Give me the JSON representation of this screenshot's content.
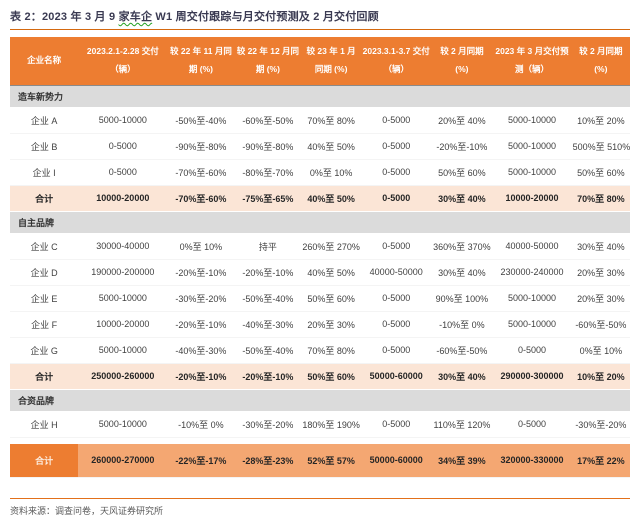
{
  "title": {
    "prefix": "表 2：2023 年 3 月 9 ",
    "underlined": "家车企",
    "suffix": " W1 周交付跟踪与月交付预测及 2 月交付回顾"
  },
  "table": {
    "columns": [
      "企业名称",
      "2023.2.1-2.28 交付（辆）",
      "较 22 年 11 月同期 (%)",
      "较 22 年 12 月同期 (%)",
      "较 23 年 1 月同期 (%)",
      "2023.3.1-3.7 交付（辆）",
      "较 2 月同期 (%)",
      "2023 年 3 月交付预测（辆）",
      "较 2 月同期 (%)"
    ],
    "sections": [
      {
        "name": "造车新势力",
        "rows": [
          {
            "label": "企业 A",
            "values": [
              "5000-10000",
              "-50%至-40%",
              "-60%至-50%",
              "70%至 80%",
              "0-5000",
              "20%至 40%",
              "5000-10000",
              "10%至 20%"
            ]
          },
          {
            "label": "企业 B",
            "values": [
              "0-5000",
              "-90%至-80%",
              "-90%至-80%",
              "40%至 50%",
              "0-5000",
              "-20%至-10%",
              "5000-10000",
              "500%至 510%"
            ]
          },
          {
            "label": "企业 I",
            "values": [
              "0-5000",
              "-70%至-60%",
              "-80%至-70%",
              "0%至 10%",
              "0-5000",
              "50%至 60%",
              "5000-10000",
              "50%至 60%"
            ]
          }
        ],
        "subtotal": {
          "label": "合计",
          "values": [
            "10000-20000",
            "-70%至-60%",
            "-75%至-65%",
            "40%至 50%",
            "0-5000",
            "30%至 40%",
            "10000-20000",
            "70%至 80%"
          ]
        }
      },
      {
        "name": "自主品牌",
        "rows": [
          {
            "label": "企业 C",
            "values": [
              "30000-40000",
              "0%至 10%",
              "持平",
              "260%至 270%",
              "0-5000",
              "360%至 370%",
              "40000-50000",
              "30%至 40%"
            ]
          },
          {
            "label": "企业 D",
            "values": [
              "190000-200000",
              "-20%至-10%",
              "-20%至-10%",
              "40%至 50%",
              "40000-50000",
              "30%至 40%",
              "230000-240000",
              "20%至 30%"
            ]
          },
          {
            "label": "企业 E",
            "values": [
              "5000-10000",
              "-30%至-20%",
              "-50%至-40%",
              "50%至 60%",
              "0-5000",
              "90%至 100%",
              "5000-10000",
              "20%至 30%"
            ]
          },
          {
            "label": "企业 F",
            "values": [
              "10000-20000",
              "-20%至-10%",
              "-40%至-30%",
              "20%至 30%",
              "0-5000",
              "-10%至 0%",
              "5000-10000",
              "-60%至-50%"
            ]
          },
          {
            "label": "企业 G",
            "values": [
              "5000-10000",
              "-40%至-30%",
              "-50%至-40%",
              "70%至 80%",
              "0-5000",
              "-60%至-50%",
              "0-5000",
              "0%至 10%"
            ]
          }
        ],
        "subtotal": {
          "label": "合计",
          "values": [
            "250000-260000",
            "-20%至-10%",
            "-20%至-10%",
            "50%至 60%",
            "50000-60000",
            "30%至 40%",
            "290000-300000",
            "10%至 20%"
          ]
        }
      },
      {
        "name": "合资品牌",
        "rows": [
          {
            "label": "企业 H",
            "values": [
              "5000-10000",
              "-10%至 0%",
              "-30%至-20%",
              "180%至 190%",
              "0-5000",
              "110%至 120%",
              "0-5000",
              "-30%至-20%"
            ]
          }
        ],
        "subtotal": null
      }
    ],
    "grand_total": {
      "label": "合计",
      "values": [
        "260000-270000",
        "-22%至-17%",
        "-28%至-23%",
        "52%至 57%",
        "50000-60000",
        "34%至 39%",
        "320000-330000",
        "17%至 22%"
      ]
    }
  },
  "footer": {
    "source": "资料来源：调查问卷，天风证券研究所"
  },
  "colors": {
    "header_bg": "#ED7D31",
    "section_bg": "#DBDBDB",
    "subtotal_bg": "#FBE5D6",
    "grand_total_bg": "#F4A772",
    "grand_total_label_bg": "#ED7D31",
    "rule_orange": "#D4690F",
    "title_text": "#3A3A52",
    "body_text": "#404040",
    "squiggle_green": "#21A121"
  }
}
